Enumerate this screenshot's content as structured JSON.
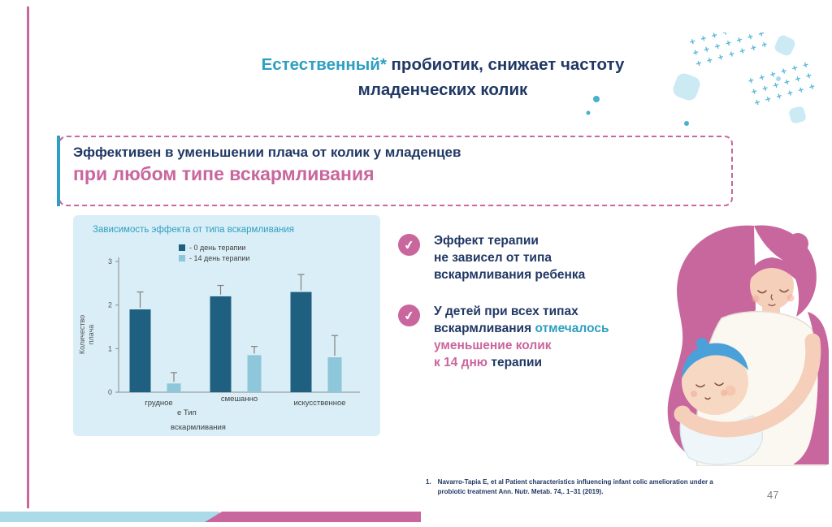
{
  "title": {
    "highlight": "Естественный*",
    "rest": " пробиотик, снижает частоту",
    "line2": "младенческих колик"
  },
  "callout": {
    "line1": "Эффективен в уменьшении плача от колик у младенцев",
    "line2": "при любом типе вскармливания"
  },
  "chart_data": {
    "type": "bar",
    "title": "Зависимость эффекта от типа вскармливания",
    "categories": [
      "грудное",
      "смешанное",
      "искусственное"
    ],
    "categories_display": [
      "грудное",
      "смешанно",
      "искусственное"
    ],
    "series": [
      {
        "name": "- 0 день терапии",
        "color": "#1F5F80",
        "values": [
          1.9,
          2.2,
          2.3
        ],
        "errors": [
          0.4,
          0.25,
          0.4
        ]
      },
      {
        "name": "- 14 день терапии",
        "color": "#8EC6DA",
        "values": [
          0.2,
          0.85,
          0.8
        ],
        "errors": [
          0.25,
          0.2,
          0.5
        ]
      }
    ],
    "ylabel": "Количество плача",
    "ylabel_lines": [
      "Количество",
      "плача"
    ],
    "xlabel": "Тип вскармливания",
    "xlabel_display": [
      "е  Тип",
      "вскармливания"
    ],
    "ylim": [
      0,
      3
    ],
    "yticks": [
      0,
      1,
      2,
      3
    ],
    "x_tick_dy": [
      16,
      11,
      16
    ],
    "legend_position": "top",
    "grid": false
  },
  "bullets": [
    {
      "lines": [
        [
          {
            "t": "Эффект терапии",
            "c": "navy"
          }
        ],
        [
          {
            "t": "не зависел  от типа",
            "c": "navy"
          }
        ],
        [
          {
            "t": "вскармливания  ребенка",
            "c": "navy"
          }
        ]
      ]
    },
    {
      "lines": [
        [
          {
            "t": "У детей при всех типах",
            "c": "navy"
          }
        ],
        [
          {
            "t": "вскармливания ",
            "c": "navy"
          },
          {
            "t": " отмечалось",
            "c": "teal"
          }
        ],
        [
          {
            "t": "уменьшение колик",
            "c": "pink"
          }
        ],
        [
          {
            "t": "к 14 дню",
            "c": "pink"
          },
          {
            "t": " терапии",
            "c": "navy"
          }
        ]
      ]
    }
  ],
  "icons": {
    "check": "✔"
  },
  "footnote": {
    "marker": "1.",
    "text": "Navarro-Tapia E, et al Patient characteristics influencing infant colic amelioration under  a probiotic treatment Ann. Nutr. Metab. 74,. 1–31 (2019)."
  },
  "page_number": "47",
  "colors": {
    "navy": "#203864",
    "teal": "#2E9FC2",
    "pink": "#C9669D",
    "panel_bg": "#D9EEF6",
    "accent_light_blue": "#ABDAE9",
    "bar_dark": "#1F5F80",
    "bar_light": "#8EC6DA"
  }
}
